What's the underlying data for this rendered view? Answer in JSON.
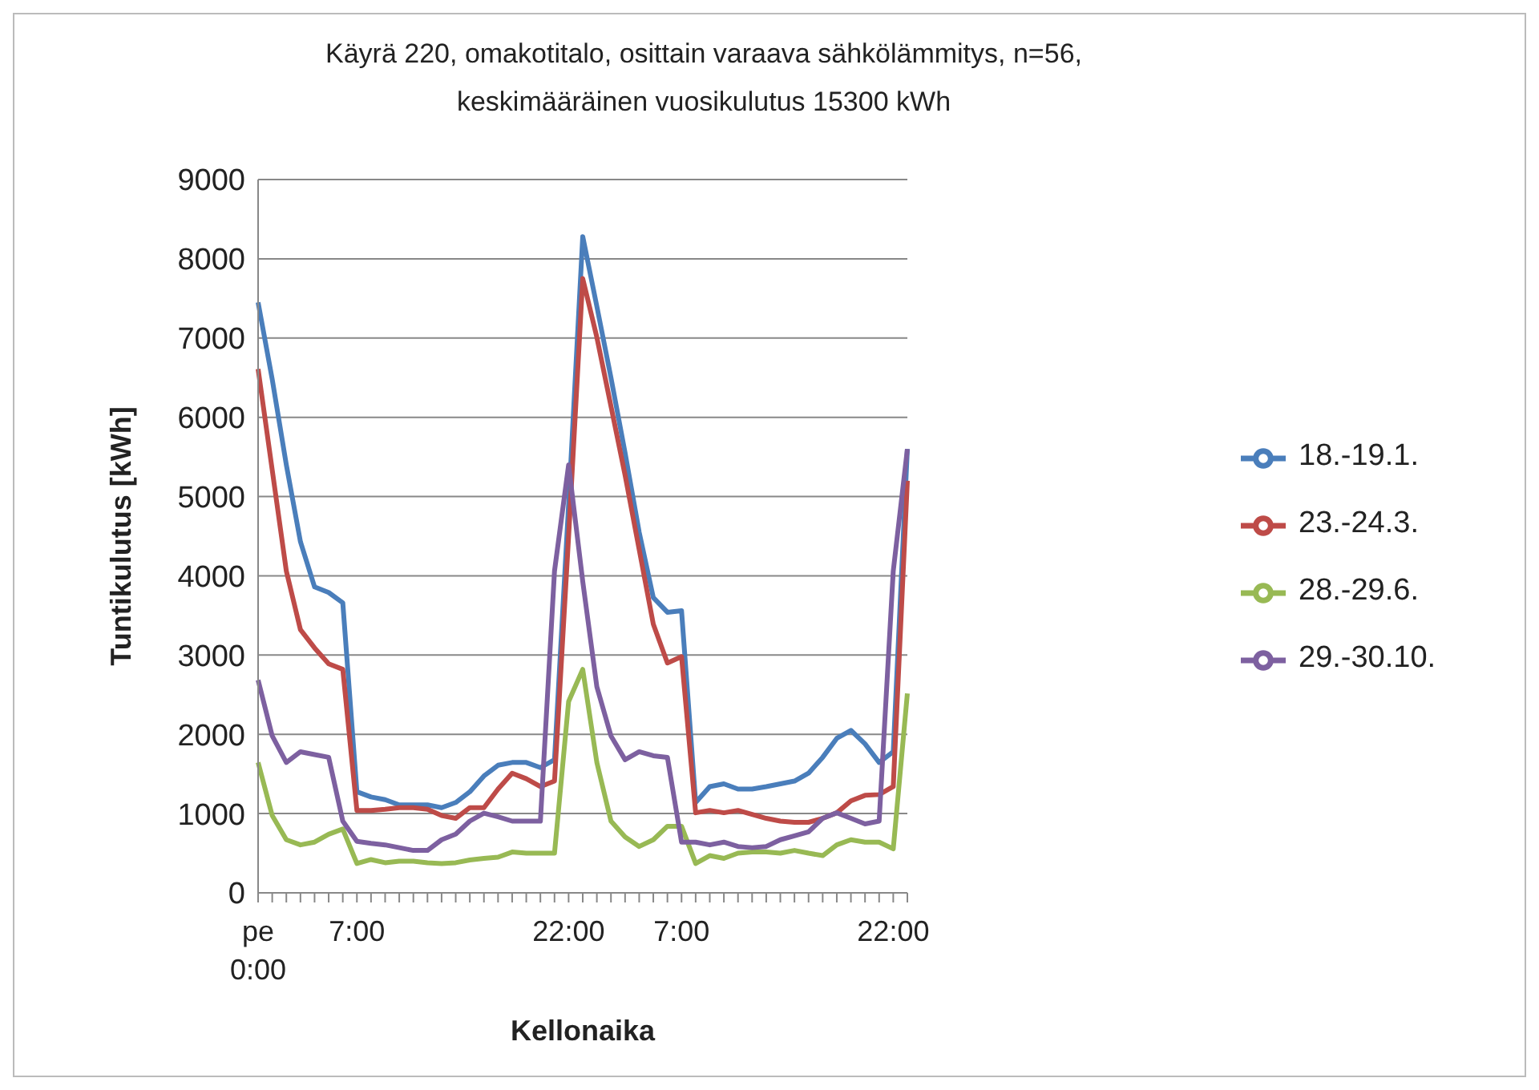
{
  "chart_data": {
    "type": "line",
    "title": "Käyrä 220, omakotitalo, osittain varaava sähkölämmitys, n=56, keskimääräinen vuosikulutus 15300 kWh",
    "xlabel": "Kellonaika",
    "ylabel": "Tuntikulutus [kWh]",
    "categories": [
      "pe 0:00",
      null,
      null,
      null,
      null,
      null,
      null,
      "7:00",
      null,
      null,
      null,
      null,
      null,
      null,
      null,
      null,
      null,
      null,
      null,
      null,
      null,
      null,
      "22:00",
      null,
      null,
      null,
      null,
      null,
      null,
      null,
      "7:00",
      null,
      null,
      null,
      null,
      null,
      null,
      null,
      null,
      null,
      null,
      null,
      null,
      null,
      null,
      "22:00",
      null
    ],
    "series": [
      {
        "name": "18.-19.1.",
        "color": "#4a7ebb",
        "values": [
          7450,
          6480,
          5400,
          4430,
          3860,
          3790,
          3660,
          1275,
          1210,
          1175,
          1110,
          1110,
          1110,
          1075,
          1140,
          1275,
          1475,
          1610,
          1645,
          1645,
          1580,
          1680,
          4900,
          8280,
          7400,
          6500,
          5550,
          4550,
          3725,
          3540,
          3560,
          1140,
          1340,
          1375,
          1310,
          1310,
          1340,
          1375,
          1410,
          1510,
          1710,
          1950,
          2050,
          1880,
          1645,
          1780,
          5600
        ]
      },
      {
        "name": "23.-24.3.",
        "color": "#be4b48",
        "values": [
          6610,
          5335,
          4060,
          3320,
          3090,
          2890,
          2820,
          1040,
          1040,
          1055,
          1075,
          1075,
          1055,
          975,
          940,
          1075,
          1075,
          1310,
          1510,
          1440,
          1340,
          1410,
          4500,
          7750,
          7010,
          6140,
          5270,
          4330,
          3390,
          2900,
          2980,
          1010,
          1040,
          1010,
          1040,
          990,
          940,
          905,
          890,
          890,
          940,
          1010,
          1160,
          1230,
          1240,
          1340,
          5200
        ]
      },
      {
        "name": "28.-29.6.",
        "color": "#98b954",
        "values": [
          1645,
          975,
          670,
          605,
          640,
          740,
          805,
          370,
          420,
          380,
          400,
          400,
          380,
          370,
          380,
          415,
          435,
          450,
          515,
          500,
          500,
          500,
          2415,
          2820,
          1645,
          905,
          705,
          585,
          670,
          840,
          840,
          370,
          470,
          435,
          500,
          515,
          515,
          500,
          535,
          500,
          470,
          605,
          670,
          640,
          640,
          555,
          2515
        ]
      },
      {
        "name": "29.-30.10.",
        "color": "#7d60a0",
        "values": [
          2685,
          1980,
          1645,
          1780,
          1745,
          1710,
          905,
          650,
          625,
          605,
          570,
          535,
          535,
          670,
          740,
          905,
          1005,
          960,
          905,
          905,
          905,
          4060,
          5400,
          3930,
          2600,
          1980,
          1680,
          1780,
          1730,
          1710,
          640,
          640,
          605,
          640,
          585,
          570,
          585,
          670,
          720,
          770,
          940,
          1010,
          940,
          870,
          905,
          4060,
          5600
        ]
      }
    ],
    "ylim": [
      0,
      9000
    ],
    "yticks": [
      0,
      1000,
      2000,
      3000,
      4000,
      5000,
      6000,
      7000,
      8000,
      9000
    ],
    "grid": "y",
    "legend": "right",
    "marker": "none",
    "line_style": "solid"
  }
}
